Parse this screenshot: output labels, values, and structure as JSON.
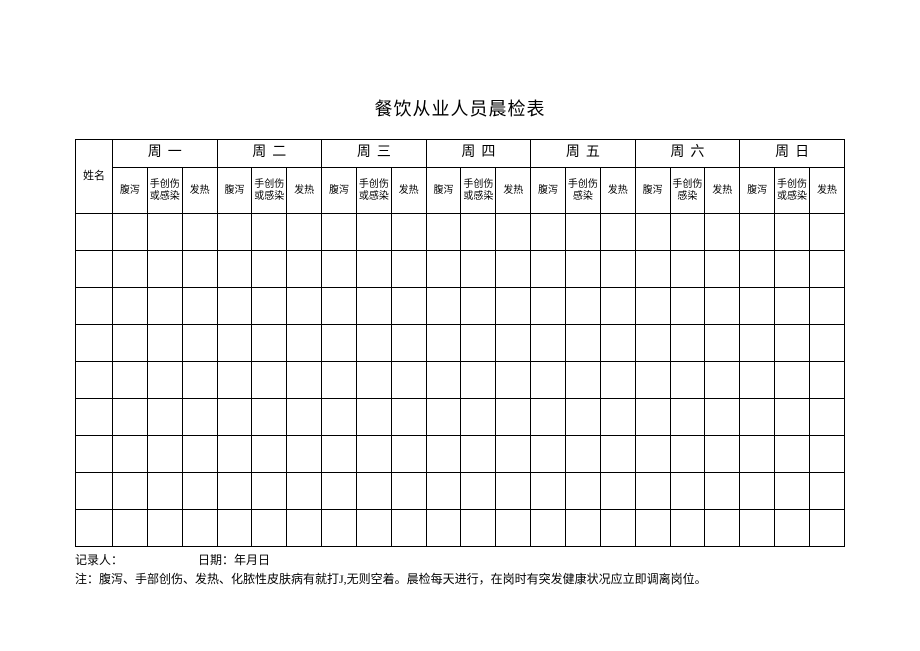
{
  "title": "餐饮从业人员晨检表",
  "name_header": "姓名",
  "days": [
    "周一",
    "周二",
    "周三",
    "周四",
    "周五",
    "周六",
    "周日"
  ],
  "sub": {
    "a": "腹泻",
    "b1": "手创伤或感染",
    "b2": "手创伤或感染",
    "b3": "手创伤或感染",
    "b4": "手创伤或感染",
    "b5": "手创伤感染",
    "b6": "手创伤感染",
    "b7": "手创伤或感染",
    "c": "发热"
  },
  "data_row_count": 9,
  "footer": {
    "recorder_label": "记录人：",
    "date_label": "日期：年月日",
    "note": "注：腹泻、手部创伤、发热、化脓性皮肤病有就打J,无则空着。晨检每天进行，在岗时有突发健康状况应立即调离岗位。"
  },
  "colors": {
    "border": "#000000",
    "background": "#ffffff",
    "text": "#000000"
  }
}
